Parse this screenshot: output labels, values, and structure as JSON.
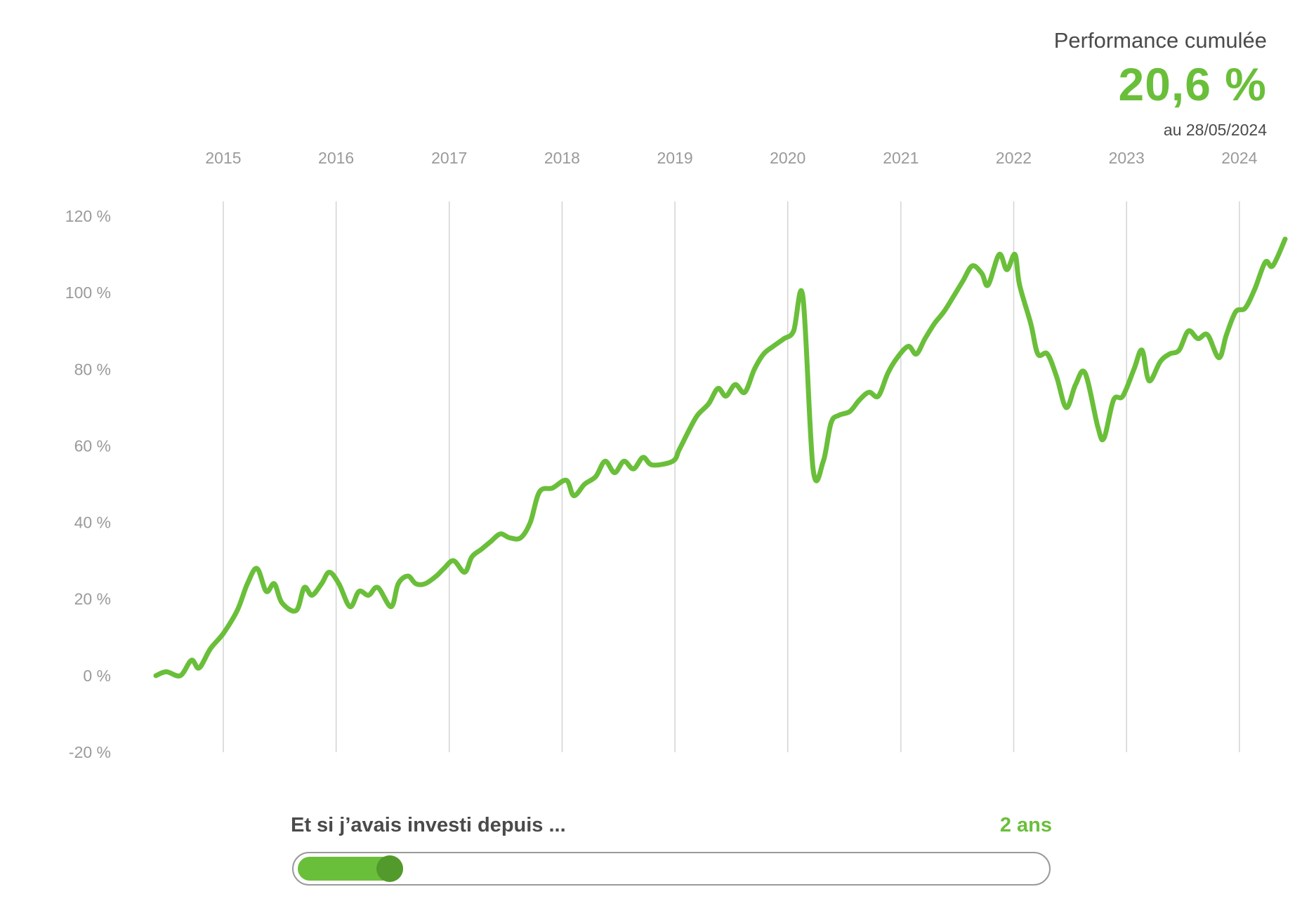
{
  "header": {
    "label": "Performance cumulée",
    "value": "20,6 %",
    "date": "au 28/05/2024"
  },
  "colors": {
    "accent": "#6abf3a",
    "thumb": "#529a2b",
    "text": "#4a4a4a",
    "axis_text": "#9a9a9a",
    "grid": "#d4d4d4"
  },
  "chart_data": {
    "type": "line",
    "title": "",
    "xlabel": "",
    "ylabel": "",
    "ylim": [
      -20,
      120
    ],
    "yticks": [
      {
        "value": 120,
        "label": "120 %"
      },
      {
        "value": 100,
        "label": "100 %"
      },
      {
        "value": 80,
        "label": "80 %"
      },
      {
        "value": 60,
        "label": "60 %"
      },
      {
        "value": 40,
        "label": "40 %"
      },
      {
        "value": 20,
        "label": "20 %"
      },
      {
        "value": 0,
        "label": "0 %"
      },
      {
        "value": -20,
        "label": "-20 %"
      }
    ],
    "xlim": [
      "2014-05-28",
      "2024-05-28"
    ],
    "xticks": [
      {
        "value": "2015-01-01",
        "label": "2015"
      },
      {
        "value": "2016-01-01",
        "label": "2016"
      },
      {
        "value": "2017-01-01",
        "label": "2017"
      },
      {
        "value": "2018-01-01",
        "label": "2018"
      },
      {
        "value": "2019-01-01",
        "label": "2019"
      },
      {
        "value": "2020-01-01",
        "label": "2020"
      },
      {
        "value": "2021-01-01",
        "label": "2021"
      },
      {
        "value": "2022-01-01",
        "label": "2022"
      },
      {
        "value": "2023-01-01",
        "label": "2023"
      },
      {
        "value": "2024-01-01",
        "label": "2024"
      }
    ],
    "grid": "vertical at year ticks",
    "series": [
      {
        "color": "#6abf3a",
        "points": [
          [
            "2014-05-28",
            0
          ],
          [
            "2014-07-01",
            1
          ],
          [
            "2014-08-15",
            0
          ],
          [
            "2014-09-20",
            4
          ],
          [
            "2014-10-15",
            2
          ],
          [
            "2014-11-20",
            7
          ],
          [
            "2015-01-01",
            11
          ],
          [
            "2015-02-15",
            17
          ],
          [
            "2015-03-20",
            24
          ],
          [
            "2015-04-20",
            28
          ],
          [
            "2015-05-20",
            22
          ],
          [
            "2015-06-15",
            24
          ],
          [
            "2015-07-10",
            19
          ],
          [
            "2015-08-25",
            17
          ],
          [
            "2015-09-20",
            23
          ],
          [
            "2015-10-15",
            21
          ],
          [
            "2015-11-15",
            24
          ],
          [
            "2015-12-10",
            27
          ],
          [
            "2016-01-10",
            24
          ],
          [
            "2016-02-15",
            18
          ],
          [
            "2016-03-15",
            22
          ],
          [
            "2016-04-15",
            21
          ],
          [
            "2016-05-15",
            23
          ],
          [
            "2016-06-27",
            18
          ],
          [
            "2016-07-20",
            24
          ],
          [
            "2016-08-20",
            26
          ],
          [
            "2016-09-15",
            24
          ],
          [
            "2016-10-15",
            24
          ],
          [
            "2016-11-20",
            26
          ],
          [
            "2016-12-15",
            28
          ],
          [
            "2017-01-15",
            30
          ],
          [
            "2017-02-20",
            27
          ],
          [
            "2017-03-15",
            31
          ],
          [
            "2017-04-15",
            33
          ],
          [
            "2017-05-15",
            35
          ],
          [
            "2017-06-15",
            37
          ],
          [
            "2017-07-15",
            36
          ],
          [
            "2017-08-20",
            36
          ],
          [
            "2017-09-20",
            40
          ],
          [
            "2017-10-20",
            48
          ],
          [
            "2017-12-01",
            49
          ],
          [
            "2018-01-15",
            51
          ],
          [
            "2018-02-08",
            47
          ],
          [
            "2018-03-15",
            50
          ],
          [
            "2018-04-20",
            52
          ],
          [
            "2018-05-20",
            56
          ],
          [
            "2018-06-20",
            53
          ],
          [
            "2018-07-20",
            56
          ],
          [
            "2018-08-20",
            54
          ],
          [
            "2018-09-20",
            57
          ],
          [
            "2018-10-20",
            55
          ],
          [
            "2018-12-25",
            56
          ],
          [
            "2019-01-15",
            59
          ],
          [
            "2019-02-15",
            64
          ],
          [
            "2019-03-15",
            68
          ],
          [
            "2019-04-20",
            71
          ],
          [
            "2019-05-20",
            75
          ],
          [
            "2019-06-15",
            73
          ],
          [
            "2019-07-15",
            76
          ],
          [
            "2019-08-15",
            74
          ],
          [
            "2019-09-15",
            80
          ],
          [
            "2019-10-15",
            84
          ],
          [
            "2019-11-15",
            86
          ],
          [
            "2019-12-20",
            88
          ],
          [
            "2020-01-20",
            90
          ],
          [
            "2020-02-19",
            99
          ],
          [
            "2020-03-23",
            54
          ],
          [
            "2020-04-25",
            56
          ],
          [
            "2020-05-20",
            66
          ],
          [
            "2020-06-15",
            68
          ],
          [
            "2020-07-20",
            69
          ],
          [
            "2020-08-20",
            72
          ],
          [
            "2020-09-20",
            74
          ],
          [
            "2020-10-20",
            73
          ],
          [
            "2020-11-20",
            79
          ],
          [
            "2020-12-20",
            83
          ],
          [
            "2021-01-25",
            86
          ],
          [
            "2021-02-20",
            84
          ],
          [
            "2021-03-20",
            88
          ],
          [
            "2021-04-20",
            92
          ],
          [
            "2021-05-20",
            95
          ],
          [
            "2021-06-20",
            99
          ],
          [
            "2021-07-20",
            103
          ],
          [
            "2021-08-20",
            107
          ],
          [
            "2021-09-20",
            105
          ],
          [
            "2021-10-10",
            102
          ],
          [
            "2021-11-15",
            110
          ],
          [
            "2021-12-10",
            106
          ],
          [
            "2022-01-05",
            110
          ],
          [
            "2022-01-20",
            102
          ],
          [
            "2022-02-25",
            92
          ],
          [
            "2022-03-20",
            84
          ],
          [
            "2022-04-20",
            84
          ],
          [
            "2022-05-20",
            78
          ],
          [
            "2022-06-20",
            70
          ],
          [
            "2022-07-20",
            76
          ],
          [
            "2022-08-20",
            79
          ],
          [
            "2022-09-30",
            65
          ],
          [
            "2022-10-20",
            62
          ],
          [
            "2022-11-20",
            72
          ],
          [
            "2022-12-20",
            73
          ],
          [
            "2023-01-25",
            80
          ],
          [
            "2023-02-20",
            85
          ],
          [
            "2023-03-15",
            77
          ],
          [
            "2023-04-20",
            82
          ],
          [
            "2023-05-20",
            84
          ],
          [
            "2023-06-20",
            85
          ],
          [
            "2023-07-20",
            90
          ],
          [
            "2023-08-20",
            88
          ],
          [
            "2023-09-20",
            89
          ],
          [
            "2023-10-27",
            83
          ],
          [
            "2023-11-20",
            89
          ],
          [
            "2023-12-20",
            95
          ],
          [
            "2024-01-20",
            96
          ],
          [
            "2024-02-20",
            101
          ],
          [
            "2024-03-25",
            108
          ],
          [
            "2024-04-18",
            107
          ],
          [
            "2024-05-28",
            114
          ]
        ]
      }
    ]
  },
  "slider": {
    "label": "Et si j’avais investi depuis ...",
    "value_label": "2 ans",
    "level": 0.14
  }
}
